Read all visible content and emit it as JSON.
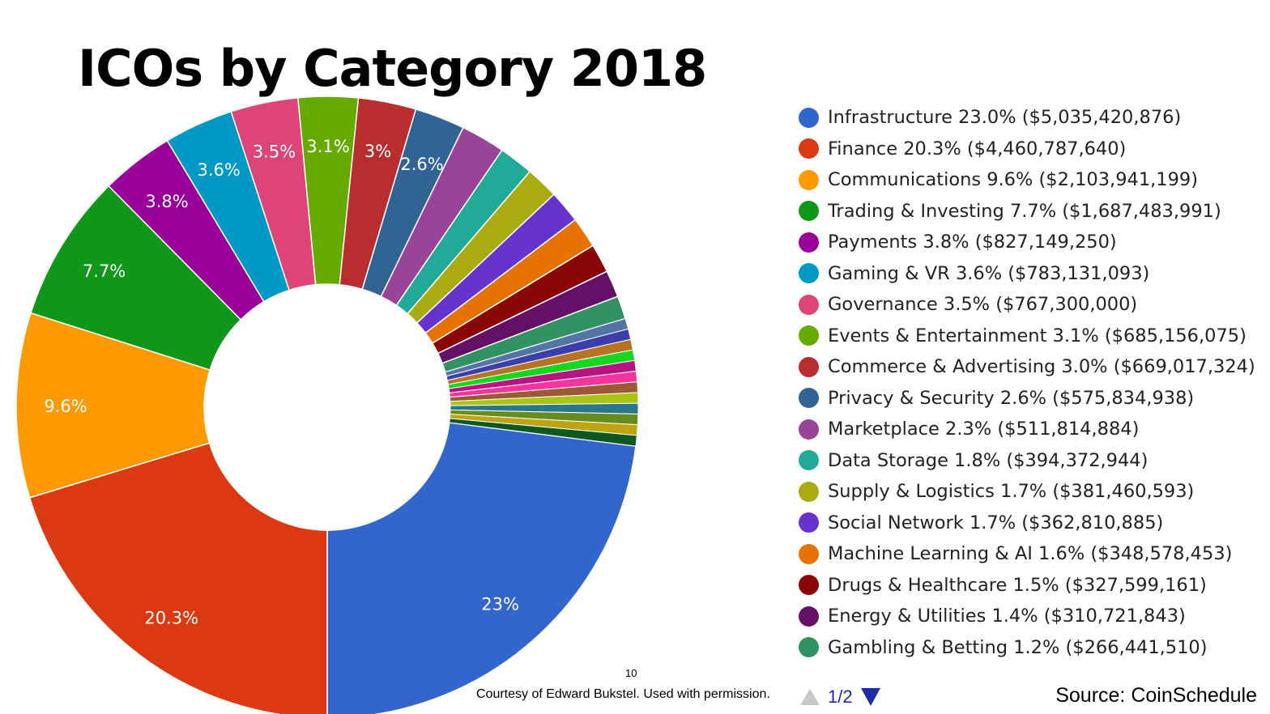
{
  "slide": {
    "title": "ICOs by Category 2018",
    "page_number": "10",
    "credit": "Courtesy of Edward Bukstel. Used with permission.",
    "pager": "1/2",
    "source": "Source: CoinSchedule"
  },
  "chart_data": {
    "type": "pie",
    "donut": true,
    "title": "ICOs by Category 2018",
    "legend_position": "right",
    "slices": [
      {
        "label": "Infrastructure 23.0% ($5,035,420,876)",
        "category": "Infrastructure",
        "value": 5035420876,
        "percent": 23.0,
        "slice_label": "23%",
        "color": "#3366cc"
      },
      {
        "label": "Finance 20.3% ($4,460,787,640)",
        "category": "Finance",
        "value": 4460787640,
        "percent": 20.3,
        "slice_label": "20.3%",
        "color": "#dc3912"
      },
      {
        "label": "Communications 9.6% ($2,103,941,199)",
        "category": "Communications",
        "value": 2103941199,
        "percent": 9.6,
        "slice_label": "9.6%",
        "color": "#ff9900"
      },
      {
        "label": "Trading & Investing 7.7% ($1,687,483,991)",
        "category": "Trading & Investing",
        "value": 1687483991,
        "percent": 7.7,
        "slice_label": "7.7%",
        "color": "#109618"
      },
      {
        "label": "Payments 3.8% ($827,149,250)",
        "category": "Payments",
        "value": 827149250,
        "percent": 3.8,
        "slice_label": "3.8%",
        "color": "#990099"
      },
      {
        "label": "Gaming & VR 3.6% ($783,131,093)",
        "category": "Gaming & VR",
        "value": 783131093,
        "percent": 3.6,
        "slice_label": "3.6%",
        "color": "#0099c6"
      },
      {
        "label": "Governance 3.5% ($767,300,000)",
        "category": "Governance",
        "value": 767300000,
        "percent": 3.5,
        "slice_label": "3.5%",
        "color": "#dd4477"
      },
      {
        "label": "Events & Entertainment 3.1% ($685,156,075)",
        "category": "Events & Entertainment",
        "value": 685156075,
        "percent": 3.1,
        "slice_label": "3.1%",
        "color": "#66aa00"
      },
      {
        "label": "Commerce & Advertising 3.0% ($669,017,324)",
        "category": "Commerce & Advertising",
        "value": 669017324,
        "percent": 3.0,
        "slice_label": "3%",
        "color": "#b82e2e"
      },
      {
        "label": "Privacy & Security 2.6% ($575,834,938)",
        "category": "Privacy & Security",
        "value": 575834938,
        "percent": 2.6,
        "slice_label": "2.6%",
        "color": "#316395"
      },
      {
        "label": "Marketplace 2.3% ($511,814,884)",
        "category": "Marketplace",
        "value": 511814884,
        "percent": 2.3,
        "slice_label": "",
        "color": "#994499"
      },
      {
        "label": "Data Storage 1.8% ($394,372,944)",
        "category": "Data Storage",
        "value": 394372944,
        "percent": 1.8,
        "slice_label": "",
        "color": "#22aa99"
      },
      {
        "label": "Supply & Logistics 1.7% ($381,460,593)",
        "category": "Supply & Logistics",
        "value": 381460593,
        "percent": 1.7,
        "slice_label": "",
        "color": "#aaaa11"
      },
      {
        "label": "Social Network 1.7% ($362,810,885)",
        "category": "Social Network",
        "value": 362810885,
        "percent": 1.7,
        "slice_label": "",
        "color": "#6633cc"
      },
      {
        "label": "Machine Learning & AI 1.6% ($348,578,453)",
        "category": "Machine Learning & AI",
        "value": 348578453,
        "percent": 1.6,
        "slice_label": "",
        "color": "#e67300"
      },
      {
        "label": "Drugs & Healthcare 1.5% ($327,599,161)",
        "category": "Drugs & Healthcare",
        "value": 327599161,
        "percent": 1.5,
        "slice_label": "",
        "color": "#8b0707"
      },
      {
        "label": "Energy & Utilities 1.4% ($310,721,843)",
        "category": "Energy & Utilities",
        "value": 310721843,
        "percent": 1.4,
        "slice_label": "",
        "color": "#651067"
      },
      {
        "label": "Gambling & Betting 1.2% ($266,441,510)",
        "category": "Gambling & Betting",
        "value": 266441510,
        "percent": 1.2,
        "slice_label": "",
        "color": "#329262"
      }
    ],
    "unlabeled_remainder_colors": [
      "#5574a6",
      "#3b3eac",
      "#b77322",
      "#16d620",
      "#b91383",
      "#f4359e",
      "#9c5935",
      "#a9c413",
      "#2a778d",
      "#668d1c",
      "#bea413",
      "#0c5922"
    ]
  }
}
